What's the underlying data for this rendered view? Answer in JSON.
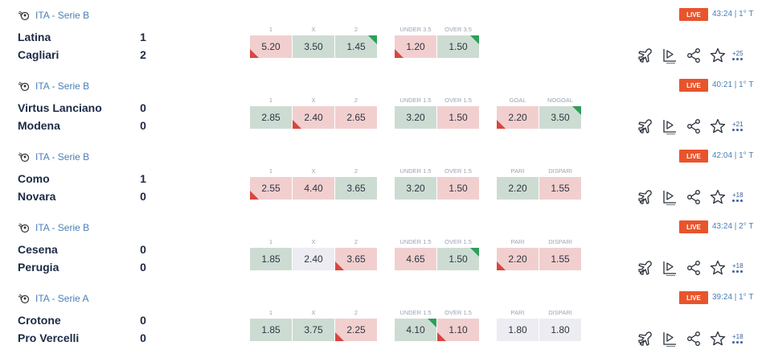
{
  "colors": {
    "live_badge": "#e8542c",
    "odd_up": "#2ca058",
    "odd_down": "#d8463f",
    "odd_green_bg": "#cddcd3",
    "odd_red_bg": "#f2cfcf",
    "league_link": "#4a7fb5"
  },
  "icons": {
    "league": "soccer-ball-flying-icon",
    "actions": [
      "flight-icon",
      "play-list-icon",
      "share-icon",
      "star-icon",
      "more-dots-icon"
    ]
  },
  "matches": [
    {
      "league": "ITA - Serie B",
      "live": "LIVE",
      "time": "43:24 | 1° T",
      "home": "Latina",
      "away": "Cagliari",
      "home_score": "1",
      "away_score": "2",
      "m1": {
        "labels": [
          "1",
          "X",
          "2"
        ],
        "values": [
          "5.20",
          "3.50",
          "1.45"
        ],
        "trend": [
          "down",
          "green",
          "up"
        ]
      },
      "m2": {
        "labels": [
          "UNDER 3.5",
          "OVER 3.5"
        ],
        "values": [
          "1.20",
          "1.50"
        ],
        "trend": [
          "down",
          "up"
        ]
      },
      "more": "+25"
    },
    {
      "league": "ITA - Serie B",
      "live": "LIVE",
      "time": "40:21 | 1° T",
      "home": "Virtus Lanciano",
      "away": "Modena",
      "home_score": "0",
      "away_score": "0",
      "m1": {
        "labels": [
          "1",
          "X",
          "2"
        ],
        "values": [
          "2.85",
          "2.40",
          "2.65"
        ],
        "trend": [
          "green",
          "down",
          "red"
        ]
      },
      "m2": {
        "labels": [
          "UNDER 1.5",
          "OVER 1.5"
        ],
        "values": [
          "3.20",
          "1.50"
        ],
        "trend": [
          "green",
          "red"
        ]
      },
      "m3": {
        "labels": [
          "GOAL",
          "NOGOAL"
        ],
        "values": [
          "2.20",
          "3.50"
        ],
        "trend": [
          "down",
          "up"
        ]
      },
      "more": "+21"
    },
    {
      "league": "ITA - Serie B",
      "live": "LIVE",
      "time": "42:04 | 1° T",
      "home": "Como",
      "away": "Novara",
      "home_score": "1",
      "away_score": "0",
      "m1": {
        "labels": [
          "1",
          "X",
          "2"
        ],
        "values": [
          "2.55",
          "4.40",
          "3.65"
        ],
        "trend": [
          "down",
          "red",
          "green"
        ]
      },
      "m2": {
        "labels": [
          "UNDER 1.5",
          "OVER 1.5"
        ],
        "values": [
          "3.20",
          "1.50"
        ],
        "trend": [
          "green",
          "red"
        ]
      },
      "m3": {
        "labels": [
          "PARI",
          "DISPARI"
        ],
        "values": [
          "2.20",
          "1.55"
        ],
        "trend": [
          "green",
          "red"
        ]
      },
      "more": "+18"
    },
    {
      "league": "ITA - Serie B",
      "live": "LIVE",
      "time": "43:24 | 2° T",
      "home": "Cesena",
      "away": "Perugia",
      "home_score": "0",
      "away_score": "0",
      "m1": {
        "labels": [
          "1",
          "X",
          "2"
        ],
        "values": [
          "1.85",
          "2.40",
          "3.65"
        ],
        "trend": [
          "green",
          "neutral",
          "down"
        ]
      },
      "m2": {
        "labels": [
          "UNDER 1.5",
          "OVER 1.5"
        ],
        "values": [
          "4.65",
          "1.50"
        ],
        "trend": [
          "red",
          "up"
        ]
      },
      "m3": {
        "labels": [
          "PARI",
          "DISPARI"
        ],
        "values": [
          "2.20",
          "1.55"
        ],
        "trend": [
          "down",
          "red"
        ]
      },
      "more": "+18"
    },
    {
      "league": "ITA - Serie A",
      "live": "LIVE",
      "time": "39:24 | 1° T",
      "home": "Crotone",
      "away": "Pro Vercelli",
      "home_score": "0",
      "away_score": "0",
      "m1": {
        "labels": [
          "1",
          "X",
          "2"
        ],
        "values": [
          "1.85",
          "3.75",
          "2.25"
        ],
        "trend": [
          "green",
          "green",
          "down"
        ]
      },
      "m2": {
        "labels": [
          "UNDER 1.5",
          "OVER 1.5"
        ],
        "values": [
          "4.10",
          "1.10"
        ],
        "trend": [
          "up",
          "down"
        ]
      },
      "m3": {
        "labels": [
          "PARI",
          "DISPARI"
        ],
        "values": [
          "1.80",
          "1.80"
        ],
        "trend": [
          "neutral",
          "neutral"
        ]
      },
      "more": "+18"
    }
  ]
}
